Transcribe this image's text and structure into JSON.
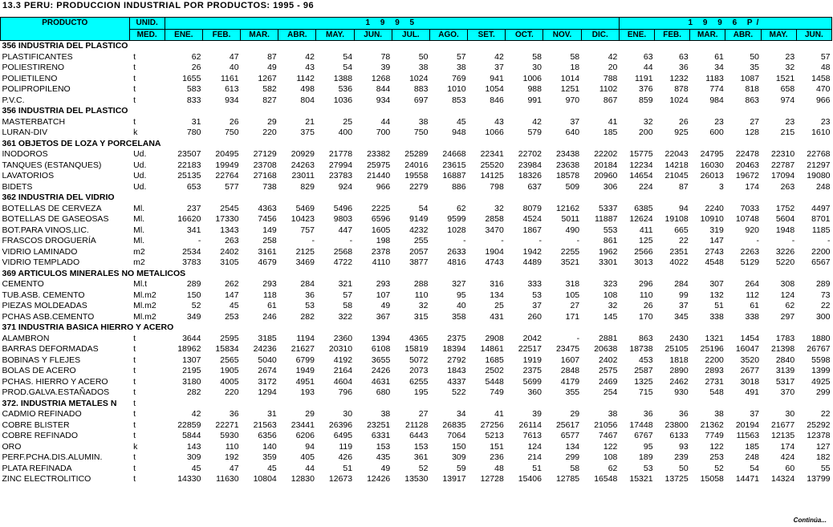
{
  "title": "13.3  PERU:  PRODUCCION  INDUSTRIAL  POR PRODUCTOS:  1995 - 96",
  "headers": {
    "product": "PRODUCTO",
    "unit_top": "UNID.",
    "unit_bottom": "MED.",
    "year1": "1 9 9 5",
    "year2": "1 9 9 6  P/",
    "months1995": [
      "ENE.",
      "FEB.",
      "MAR.",
      "ABR.",
      "MAY.",
      "JUN.",
      "JUL.",
      "AGO.",
      "SET.",
      "OCT.",
      "NOV.",
      "DIC."
    ],
    "months1996": [
      "ENE.",
      "FEB.",
      "MAR.",
      "ABR.",
      "MAY.",
      "JUN."
    ]
  },
  "rows": [
    {
      "section": "356 INDUSTRIA DEL PLASTICO"
    },
    {
      "name": "PLASTIFICANTES",
      "unit": "t",
      "v": [
        "62",
        "47",
        "87",
        "42",
        "54",
        "78",
        "50",
        "57",
        "42",
        "58",
        "58",
        "42",
        "63",
        "63",
        "61",
        "50",
        "23",
        "57"
      ]
    },
    {
      "name": "POLIESTIRENO",
      "unit": "t",
      "v": [
        "26",
        "40",
        "49",
        "43",
        "54",
        "39",
        "38",
        "38",
        "37",
        "30",
        "18",
        "20",
        "44",
        "36",
        "34",
        "35",
        "32",
        "48"
      ]
    },
    {
      "name": "POLIETILENO",
      "unit": "t",
      "v": [
        "1655",
        "1161",
        "1267",
        "1142",
        "1388",
        "1268",
        "1024",
        "769",
        "941",
        "1006",
        "1014",
        "788",
        "1191",
        "1232",
        "1183",
        "1087",
        "1521",
        "1458"
      ]
    },
    {
      "name": "POLIPROPILENO",
      "unit": "t",
      "v": [
        "583",
        "613",
        "582",
        "498",
        "536",
        "844",
        "883",
        "1010",
        "1054",
        "988",
        "1251",
        "1102",
        "376",
        "878",
        "774",
        "818",
        "658",
        "470"
      ]
    },
    {
      "name": "P.V.C.",
      "unit": "t",
      "v": [
        "833",
        "934",
        "827",
        "804",
        "1036",
        "934",
        "697",
        "853",
        "846",
        "991",
        "970",
        "867",
        "859",
        "1024",
        "984",
        "863",
        "974",
        "966"
      ]
    },
    {
      "section": "356 INDUSTRIA DEL PLASTICO"
    },
    {
      "name": "MASTERBATCH",
      "unit": "t",
      "v": [
        "31",
        "26",
        "29",
        "21",
        "25",
        "44",
        "38",
        "45",
        "43",
        "42",
        "37",
        "41",
        "32",
        "26",
        "23",
        "27",
        "23",
        "23"
      ]
    },
    {
      "name": "LURAN-DIV",
      "unit": "k",
      "v": [
        "780",
        "750",
        "220",
        "375",
        "400",
        "700",
        "750",
        "948",
        "1066",
        "579",
        "640",
        "185",
        "200",
        "925",
        "600",
        "128",
        "215",
        "1610"
      ]
    },
    {
      "section": "361 OBJETOS DE LOZA Y PORCELANA"
    },
    {
      "name": "INODOROS",
      "unit": "Ud.",
      "v": [
        "23507",
        "20495",
        "27129",
        "20929",
        "21778",
        "23382",
        "25289",
        "24668",
        "22341",
        "22702",
        "23438",
        "22202",
        "15775",
        "22043",
        "24795",
        "22478",
        "22310",
        "22768"
      ]
    },
    {
      "name": "TANQUES (ESTANQUES)",
      "unit": "Ud.",
      "v": [
        "22183",
        "19949",
        "23708",
        "24263",
        "27994",
        "25975",
        "24016",
        "23615",
        "25520",
        "23984",
        "23638",
        "20184",
        "12234",
        "14218",
        "16030",
        "20463",
        "22787",
        "21297"
      ]
    },
    {
      "name": "LAVATORIOS",
      "unit": "Ud.",
      "v": [
        "25135",
        "22764",
        "27168",
        "23011",
        "23783",
        "21440",
        "19558",
        "16887",
        "14125",
        "18326",
        "18578",
        "20960",
        "14654",
        "21045",
        "26013",
        "19672",
        "17094",
        "19080"
      ]
    },
    {
      "name": "BIDETS",
      "unit": "Ud.",
      "v": [
        "653",
        "577",
        "738",
        "829",
        "924",
        "966",
        "2279",
        "886",
        "798",
        "637",
        "509",
        "306",
        "224",
        "87",
        "3",
        "174",
        "263",
        "248"
      ]
    },
    {
      "section": "362 INDUSTRIA DEL VIDRIO"
    },
    {
      "name": "BOTELLAS DE CERVEZA",
      "unit": "Ml.",
      "v": [
        "237",
        "2545",
        "4363",
        "5469",
        "5496",
        "2225",
        "54",
        "62",
        "32",
        "8079",
        "12162",
        "5337",
        "6385",
        "94",
        "2240",
        "7033",
        "1752",
        "4497"
      ]
    },
    {
      "name": "BOTELLAS DE GASEOSAS",
      "unit": "Ml.",
      "v": [
        "16620",
        "17330",
        "7456",
        "10423",
        "9803",
        "6596",
        "9149",
        "9599",
        "2858",
        "4524",
        "5011",
        "11887",
        "12624",
        "19108",
        "10910",
        "10748",
        "5604",
        "8701"
      ]
    },
    {
      "name": "BOT.PARA VINOS,LIC.",
      "unit": "Ml.",
      "v": [
        "341",
        "1343",
        "149",
        "757",
        "447",
        "1605",
        "4232",
        "1028",
        "3470",
        "1867",
        "490",
        "553",
        "411",
        "665",
        "319",
        "920",
        "1948",
        "1185"
      ]
    },
    {
      "name": "FRASCOS DROGUERÍA",
      "unit": "Ml.",
      "v": [
        "-",
        "263",
        "258",
        "-",
        "-",
        "198",
        "255",
        "-",
        "-",
        "-",
        "-",
        "861",
        "125",
        "22",
        "147",
        "-",
        "-",
        "-"
      ]
    },
    {
      "name": "VIDRIO LAMINADO",
      "unit": "m2",
      "v": [
        "2534",
        "2402",
        "3161",
        "2125",
        "2568",
        "2378",
        "2057",
        "2633",
        "1904",
        "1942",
        "2255",
        "1962",
        "2566",
        "2351",
        "2743",
        "2263",
        "3226",
        "2200"
      ]
    },
    {
      "name": "VIDRIO  TEMPLADO",
      "unit": "m2",
      "v": [
        "3783",
        "3105",
        "4679",
        "3469",
        "4722",
        "4110",
        "3877",
        "4816",
        "4743",
        "4489",
        "3521",
        "3301",
        "3013",
        "4022",
        "4548",
        "5129",
        "5220",
        "6567"
      ]
    },
    {
      "section": "369 ARTICULOS MINERALES NO METALICOS"
    },
    {
      "name": "CEMENTO",
      "unit": "Ml.t",
      "v": [
        "289",
        "262",
        "293",
        "284",
        "321",
        "293",
        "288",
        "327",
        "316",
        "333",
        "318",
        "323",
        "296",
        "284",
        "307",
        "264",
        "308",
        "289"
      ]
    },
    {
      "name": "TUB.ASB. CEMENTO",
      "unit": "Ml.m2",
      "v": [
        "150",
        "147",
        "118",
        "36",
        "57",
        "107",
        "110",
        "95",
        "134",
        "53",
        "105",
        "108",
        "110",
        "99",
        "132",
        "112",
        "124",
        "73"
      ]
    },
    {
      "name": "PIEZAS MOLDEADAS",
      "unit": "Ml.m2",
      "v": [
        "52",
        "45",
        "61",
        "53",
        "58",
        "49",
        "32",
        "40",
        "25",
        "37",
        "27",
        "32",
        "26",
        "37",
        "51",
        "61",
        "62",
        "22"
      ]
    },
    {
      "name": "PCHAS ASB.CEMENTO",
      "unit": "Ml.m2",
      "v": [
        "349",
        "253",
        "246",
        "282",
        "322",
        "367",
        "315",
        "358",
        "431",
        "260",
        "171",
        "145",
        "170",
        "345",
        "338",
        "338",
        "297",
        "300"
      ]
    },
    {
      "section": "371 INDUSTRIA BASICA HIERRO Y ACERO"
    },
    {
      "name": "ALAMBRON",
      "unit": "t",
      "v": [
        "3644",
        "2595",
        "3185",
        "1194",
        "2360",
        "1394",
        "4365",
        "2375",
        "2908",
        "2042",
        "-",
        "2881",
        "863",
        "2430",
        "1321",
        "1454",
        "1783",
        "1880"
      ]
    },
    {
      "name": "BARRAS DEFORMADAS",
      "unit": "t",
      "v": [
        "18962",
        "15834",
        "24236",
        "21627",
        "20310",
        "6108",
        "15819",
        "18394",
        "14861",
        "22517",
        "23475",
        "20638",
        "18738",
        "25105",
        "25196",
        "16047",
        "21398",
        "26767"
      ]
    },
    {
      "name": "BOBINAS Y FLEJES",
      "unit": "t",
      "v": [
        "1307",
        "2565",
        "5040",
        "6799",
        "4192",
        "3655",
        "5072",
        "2792",
        "1685",
        "1919",
        "1607",
        "2402",
        "453",
        "1818",
        "2200",
        "3520",
        "2840",
        "5598"
      ]
    },
    {
      "name": "BOLAS DE ACERO",
      "unit": "t",
      "v": [
        "2195",
        "1905",
        "2674",
        "1949",
        "2164",
        "2426",
        "2073",
        "1843",
        "2502",
        "2375",
        "2848",
        "2575",
        "2587",
        "2890",
        "2893",
        "2677",
        "3139",
        "1399"
      ]
    },
    {
      "name": "PCHAS. HIERRO Y ACERO",
      "unit": "t",
      "v": [
        "3180",
        "4005",
        "3172",
        "4951",
        "4604",
        "4631",
        "6255",
        "4337",
        "5448",
        "5699",
        "4179",
        "2469",
        "1325",
        "2462",
        "2731",
        "3018",
        "5317",
        "4925"
      ]
    },
    {
      "name": "PROD.GALVA.ESTAÑADOS",
      "unit": "t",
      "v": [
        "282",
        "220",
        "1294",
        "193",
        "796",
        "680",
        "195",
        "522",
        "749",
        "360",
        "355",
        "254",
        "715",
        "930",
        "548",
        "491",
        "370",
        "299"
      ]
    },
    {
      "section": "372. INDUSTRIA METALES N",
      "unit": "t"
    },
    {
      "name": "CADMIO REFINADO",
      "unit": "t",
      "v": [
        "42",
        "36",
        "31",
        "29",
        "30",
        "38",
        "27",
        "34",
        "41",
        "39",
        "29",
        "38",
        "36",
        "36",
        "38",
        "37",
        "30",
        "22"
      ]
    },
    {
      "name": "COBRE BLISTER",
      "unit": "t",
      "v": [
        "22859",
        "22271",
        "21563",
        "23441",
        "26396",
        "23251",
        "21128",
        "26835",
        "27256",
        "26114",
        "25617",
        "21056",
        "17448",
        "23800",
        "21362",
        "20194",
        "21677",
        "25292"
      ]
    },
    {
      "name": "COBRE REFINADO",
      "unit": "t",
      "v": [
        "5844",
        "5930",
        "6356",
        "6206",
        "6495",
        "6331",
        "6443",
        "7064",
        "5213",
        "7613",
        "6577",
        "7467",
        "6767",
        "6133",
        "7749",
        "11563",
        "12135",
        "12378"
      ]
    },
    {
      "name": "ORO",
      "unit": "k",
      "v": [
        "143",
        "110",
        "140",
        "94",
        "119",
        "153",
        "153",
        "150",
        "151",
        "124",
        "134",
        "122",
        "95",
        "93",
        "122",
        "185",
        "174",
        "127"
      ]
    },
    {
      "name": "PERF.PCHA.DIS.ALUMIN.",
      "unit": "t",
      "v": [
        "309",
        "192",
        "359",
        "405",
        "426",
        "435",
        "361",
        "309",
        "236",
        "214",
        "299",
        "108",
        "189",
        "239",
        "253",
        "248",
        "424",
        "182"
      ]
    },
    {
      "name": "PLATA REFINADA",
      "unit": "t",
      "v": [
        "45",
        "47",
        "45",
        "44",
        "51",
        "49",
        "52",
        "59",
        "48",
        "51",
        "58",
        "62",
        "53",
        "50",
        "52",
        "54",
        "60",
        "55"
      ]
    },
    {
      "name": "ZINC ELECTROLITICO",
      "unit": "t",
      "v": [
        "14330",
        "11630",
        "10804",
        "12830",
        "12673",
        "12426",
        "13530",
        "13917",
        "12728",
        "15406",
        "12785",
        "16548",
        "15321",
        "13725",
        "15058",
        "14471",
        "14324",
        "13799"
      ]
    }
  ],
  "footer": "Continúa..."
}
